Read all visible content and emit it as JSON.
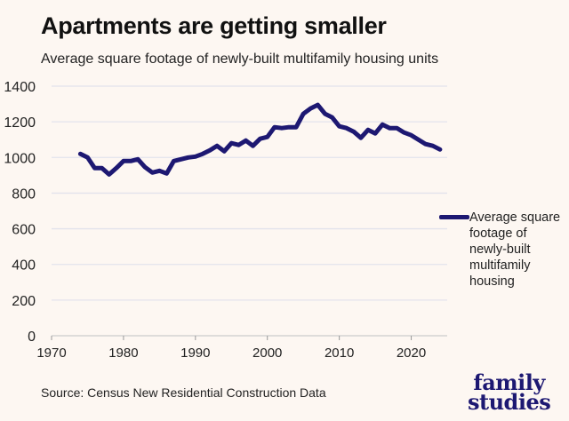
{
  "title": "Apartments are getting smaller",
  "subtitle": "Average square footage of newly-built multifamily housing units",
  "source": "Source: Census New Residential Construction Data",
  "logo": {
    "line1": "family",
    "line2": "studies"
  },
  "colors": {
    "line": "#1d1872",
    "background": "#fdf7f2",
    "grid": "#e3e3ec"
  },
  "chart_data": {
    "type": "line",
    "title": "Apartments are getting smaller",
    "xlabel": "",
    "ylabel": "",
    "xlim": [
      1970,
      2025
    ],
    "ylim": [
      0,
      1400
    ],
    "xticks": [
      1970,
      1980,
      1990,
      2000,
      2010,
      2020
    ],
    "yticks": [
      0,
      200,
      400,
      600,
      800,
      1000,
      1200,
      1400
    ],
    "grid": "horizontal",
    "legend": "right",
    "series": [
      {
        "name": "Average square footage of newly-built multifamily housing",
        "x": [
          1974,
          1975,
          1976,
          1977,
          1978,
          1979,
          1980,
          1981,
          1982,
          1983,
          1984,
          1985,
          1986,
          1987,
          1988,
          1989,
          1990,
          1991,
          1992,
          1993,
          1994,
          1995,
          1996,
          1997,
          1998,
          1999,
          2000,
          2001,
          2002,
          2003,
          2004,
          2005,
          2006,
          2007,
          2008,
          2009,
          2010,
          2011,
          2012,
          2013,
          2014,
          2015,
          2016,
          2017,
          2018,
          2019,
          2020,
          2021,
          2022,
          2023,
          2024
        ],
        "values": [
          1020,
          1000,
          940,
          940,
          905,
          940,
          980,
          980,
          990,
          945,
          915,
          925,
          910,
          980,
          990,
          1000,
          1005,
          1020,
          1040,
          1065,
          1035,
          1080,
          1070,
          1095,
          1065,
          1105,
          1115,
          1170,
          1165,
          1170,
          1170,
          1245,
          1275,
          1295,
          1245,
          1225,
          1175,
          1165,
          1145,
          1110,
          1155,
          1135,
          1185,
          1165,
          1165,
          1140,
          1125,
          1100,
          1075,
          1065,
          1045
        ]
      }
    ]
  }
}
